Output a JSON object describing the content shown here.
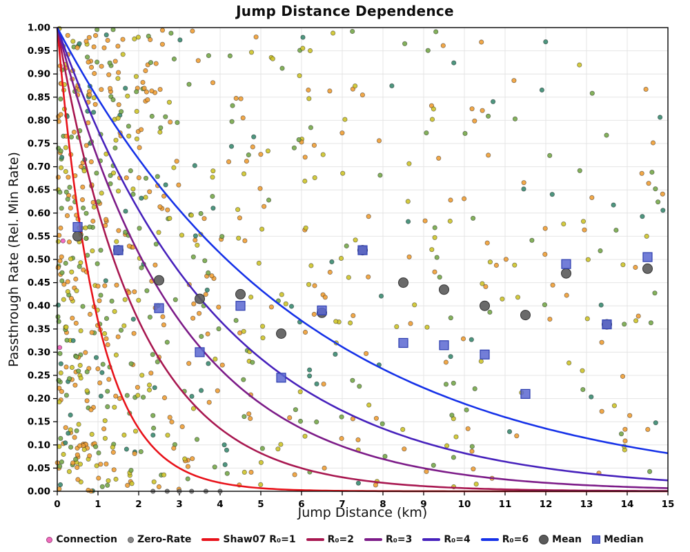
{
  "chart_data": {
    "type": "scatter",
    "title": "Jump Distance Dependence",
    "xlabel": "Jump Distance (km)",
    "ylabel": "Passthrough Rate (Rel. Min Rate)",
    "xlim": [
      0,
      15
    ],
    "ylim": [
      0,
      1
    ],
    "x_tick_step": 1,
    "y_tick_step": 0.05,
    "grid": true,
    "curve_formula": "y = exp(-x / R₀)",
    "curves": [
      {
        "name": "Shaw07 R₀=1",
        "r0": 1,
        "color": "#e8121a"
      },
      {
        "name": "R₀=2",
        "r0": 2,
        "color": "#a81750"
      },
      {
        "name": "R₀=3",
        "r0": 3,
        "color": "#7c1b88"
      },
      {
        "name": "R₀=4",
        "r0": 4,
        "color": "#4621bc"
      },
      {
        "name": "R₀=6",
        "r0": 6,
        "color": "#1531e8"
      }
    ],
    "mean_points": {
      "name": "Mean",
      "color": "#5a5a5a",
      "x": [
        0.5,
        1.5,
        2.5,
        3.5,
        4.5,
        5.5,
        6.5,
        7.5,
        8.5,
        9.5,
        10.5,
        11.5,
        12.5,
        13.5,
        14.5
      ],
      "y": [
        0.55,
        0.52,
        0.455,
        0.415,
        0.425,
        0.34,
        0.385,
        0.52,
        0.45,
        0.435,
        0.4,
        0.38,
        0.47,
        0.36,
        0.48
      ]
    },
    "median_points": {
      "name": "Median",
      "color": "#5b67d1",
      "edge_color": "#2b3cae",
      "x": [
        0.5,
        1.5,
        2.5,
        3.5,
        4.5,
        5.5,
        6.5,
        7.5,
        8.5,
        9.5,
        10.5,
        11.5,
        12.5,
        13.5,
        14.5
      ],
      "y": [
        0.57,
        0.52,
        0.395,
        0.3,
        0.4,
        0.245,
        0.39,
        0.52,
        0.32,
        0.315,
        0.295,
        0.21,
        0.49,
        0.36,
        0.505
      ]
    },
    "zero_rate_points": {
      "name": "Zero-Rate",
      "color": "#8a8a8a",
      "x": [
        2.35,
        2.7,
        3.0,
        3.3,
        3.65,
        4.0
      ],
      "y": [
        0,
        0,
        0,
        0,
        0,
        0
      ]
    },
    "connection_points": {
      "name": "Connection",
      "color": "#f26bbf",
      "x": [
        0.06,
        0.14
      ],
      "y": [
        0.31,
        0.54
      ]
    },
    "scatter": {
      "seed": 1337,
      "count": 820,
      "point_radius": 3.2,
      "palette": [
        {
          "color": "#f0a13a",
          "weight": 0.36
        },
        {
          "color": "#cfc52f",
          "weight": 0.27
        },
        {
          "color": "#79aa4e",
          "weight": 0.27
        },
        {
          "color": "#3f8d74",
          "weight": 0.1
        }
      ],
      "x_distribution": "mixture: 35% exponential(scale 1.1) + 25% exponential(scale 3.8) + 40% uniform[0,15]",
      "y_distribution": "uniform[0,1]"
    }
  },
  "legend": {
    "items": [
      {
        "label": "Connection",
        "marker": "dot",
        "color": "#f26bbf"
      },
      {
        "label": "Zero-Rate",
        "marker": "dot",
        "color": "#8a8a8a"
      },
      {
        "label": "Shaw07 R₀=1",
        "marker": "line",
        "color": "#e8121a"
      },
      {
        "label": "R₀=2",
        "marker": "line",
        "color": "#a81750"
      },
      {
        "label": "R₀=3",
        "marker": "line",
        "color": "#7c1b88"
      },
      {
        "label": "R₀=4",
        "marker": "line",
        "color": "#4621bc"
      },
      {
        "label": "R₀=6",
        "marker": "line",
        "color": "#1531e8"
      },
      {
        "label": "Mean",
        "marker": "big-dot",
        "color": "#5a5a5a"
      },
      {
        "label": "Median",
        "marker": "square",
        "color": "#5b67d1"
      }
    ]
  }
}
